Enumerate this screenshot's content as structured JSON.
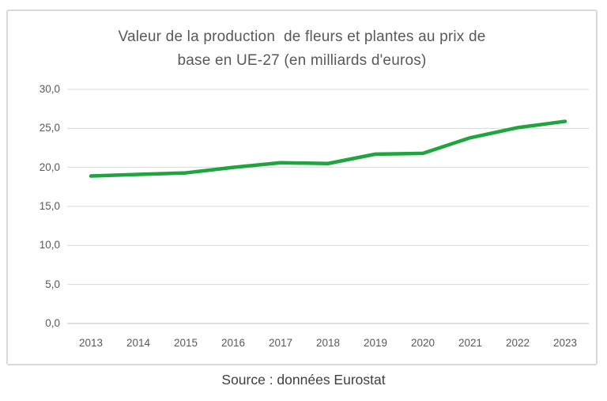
{
  "chart_data": {
    "type": "line",
    "title": "Valeur de la production de fleurs et plantes au prix de base en UE-27 (en milliards d'euros)",
    "title_lines": [
      "Valeur de la production  de fleurs et plantes au prix de",
      "base en UE-27 (en milliards d'euros)"
    ],
    "categories": [
      "2013",
      "2014",
      "2015",
      "2016",
      "2017",
      "2018",
      "2019",
      "2020",
      "2021",
      "2022",
      "2023"
    ],
    "series": [
      {
        "name": "Valeur de la production de fleurs et plantes au prix de base",
        "values": [
          18.9,
          19.1,
          19.3,
          20.0,
          20.6,
          20.5,
          21.7,
          21.8,
          23.8,
          25.1,
          25.9
        ],
        "color": "#1ea53d"
      }
    ],
    "xlabel": "",
    "ylabel": "",
    "ylim": [
      0,
      30
    ],
    "y_tick_values": [
      0,
      5,
      10,
      15,
      20,
      25,
      30
    ],
    "y_tick_labels": [
      "0,0",
      "5,0",
      "10,0",
      "15,0",
      "20,0",
      "25,0",
      "30,0"
    ],
    "grid": true,
    "legend": false
  },
  "source": {
    "label": "Source : données Eurostat"
  },
  "colors": {
    "line": "#1ea53d",
    "gridline": "#d9d9d9",
    "axis_line": "#bfbfbf",
    "title_text": "#595959",
    "tick_text": "#595959",
    "source_text": "#3f3f3f",
    "panel_border": "#d9d9d9",
    "background": "#ffffff"
  }
}
